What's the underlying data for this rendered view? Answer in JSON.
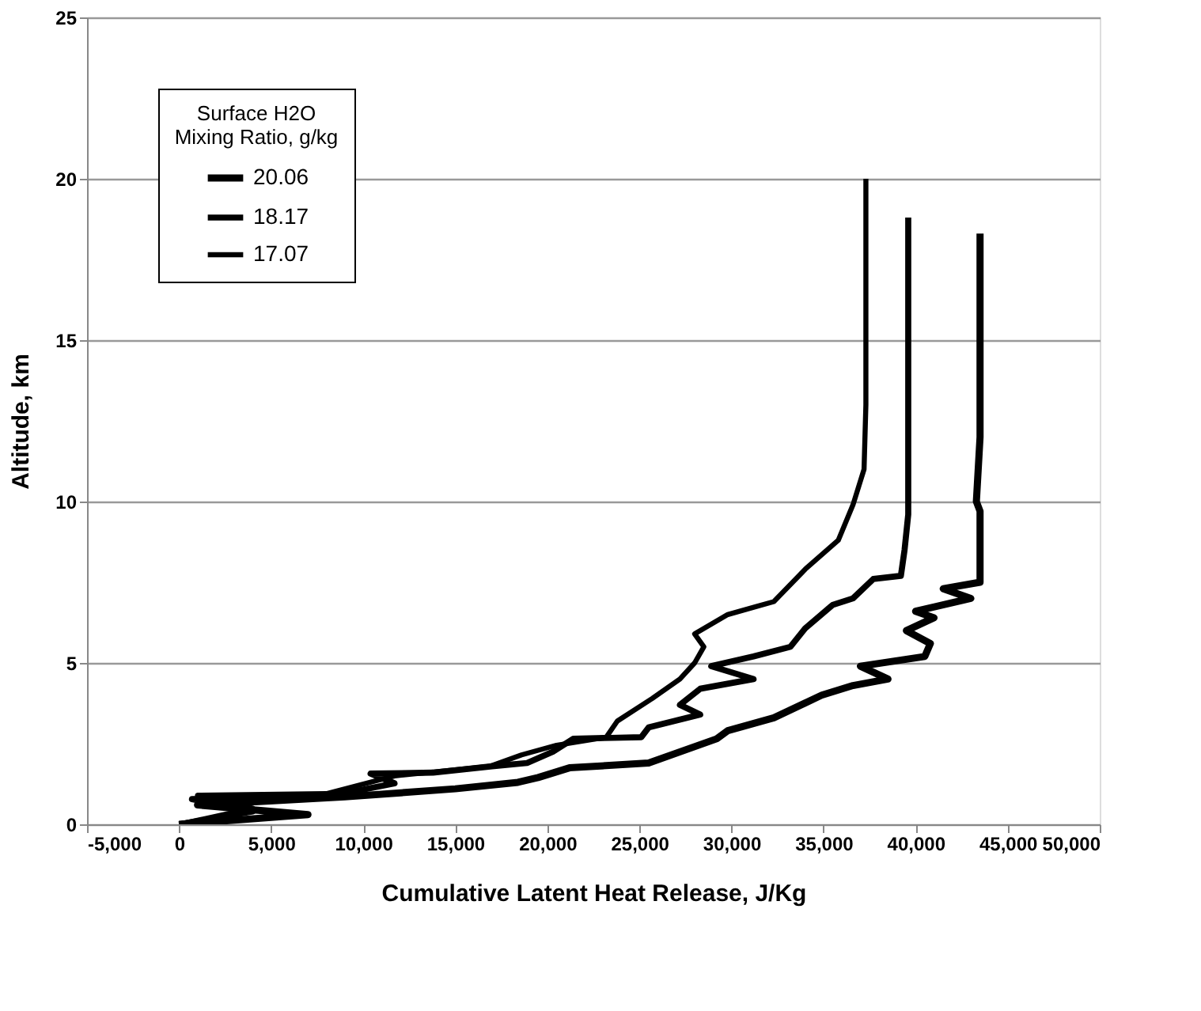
{
  "chart_data": {
    "type": "line",
    "xlabel": "Cumulative Latent Heat Release, J/Kg",
    "ylabel": "Altitude, km",
    "legend_title": "Surface H2O\nMixing Ratio, g/kg",
    "xlim": [
      -5000,
      50000
    ],
    "xticks": [
      {
        "value": -5000,
        "label": "-5,000"
      },
      0,
      {
        "value": 5000,
        "label": "5,000"
      },
      {
        "value": 10000,
        "label": "10,000"
      },
      {
        "value": 15000,
        "label": "15,000"
      },
      {
        "value": 20000,
        "label": "20,000"
      },
      {
        "value": 25000,
        "label": "25,000"
      },
      {
        "value": 30000,
        "label": "30,000"
      },
      {
        "value": 35000,
        "label": "35,000"
      },
      {
        "value": 40000,
        "label": "40,000"
      },
      {
        "value": 45000,
        "label": "45,000"
      },
      {
        "value": 50000,
        "label": "50,000"
      }
    ],
    "ylim": [
      0,
      25
    ],
    "yticks": [
      0,
      5,
      10,
      15,
      20,
      25
    ],
    "grid": "y",
    "legend": "top left",
    "marker": "none",
    "line_style": "solid",
    "series": [
      {
        "name": "20.06",
        "color": "#000000",
        "x": [
          0,
          7000,
          1000,
          9000,
          15000,
          18400,
          19500,
          21200,
          25500,
          29200,
          29800,
          32300,
          34900,
          36600,
          38500,
          37000,
          40500,
          40800,
          39500,
          41000,
          40000,
          43000,
          41500,
          43500,
          43500,
          43300,
          43500,
          43500
        ],
        "values": [
          0,
          0.3,
          0.6,
          0.85,
          1.1,
          1.3,
          1.45,
          1.75,
          1.9,
          2.65,
          2.9,
          3.3,
          4.0,
          4.3,
          4.5,
          4.9,
          5.2,
          5.6,
          6.0,
          6.4,
          6.6,
          7.0,
          7.3,
          7.5,
          9.7,
          10,
          12,
          18.3
        ]
      },
      {
        "name": "18.17",
        "color": "#000000",
        "x": [
          0,
          4000,
          700,
          8000,
          11700,
          10400,
          13800,
          17000,
          18900,
          20300,
          21400,
          25100,
          25500,
          28300,
          27200,
          28300,
          31200,
          28900,
          31200,
          33200,
          34000,
          35500,
          36600,
          37700,
          39200,
          39400,
          39600,
          39600,
          39600
        ],
        "values": [
          0,
          0.4,
          0.78,
          0.85,
          1.27,
          1.57,
          1.6,
          1.8,
          1.9,
          2.25,
          2.65,
          2.7,
          3.0,
          3.4,
          3.7,
          4.2,
          4.5,
          4.9,
          5.2,
          5.5,
          6.07,
          6.8,
          7.0,
          7.6,
          7.7,
          8.5,
          9.6,
          12,
          18.8
        ]
      },
      {
        "name": "17.07",
        "color": "#000000",
        "x": [
          0,
          4000,
          1000,
          8000,
          11700,
          16900,
          18600,
          20500,
          23200,
          23800,
          25700,
          27200,
          28000,
          28500,
          28000,
          29800,
          32300,
          34000,
          35800,
          36600,
          37200,
          37300,
          37300,
          37300
        ],
        "values": [
          0,
          0.5,
          0.9,
          0.95,
          1.5,
          1.8,
          2.15,
          2.45,
          2.7,
          3.2,
          3.9,
          4.5,
          5.0,
          5.5,
          5.9,
          6.5,
          6.9,
          7.9,
          8.8,
          9.9,
          11,
          13,
          16,
          20
        ]
      }
    ]
  }
}
